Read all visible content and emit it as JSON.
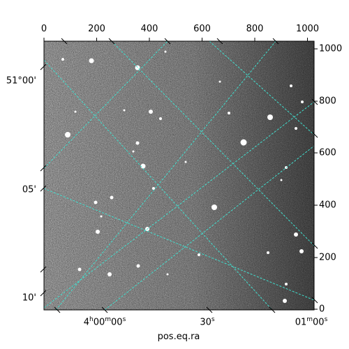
{
  "figure": {
    "x_axis_label": "pos.eq.ra",
    "top_pixel_ticks": [
      "0",
      "200",
      "400",
      "600",
      "800",
      "1000"
    ],
    "right_pixel_ticks": [
      "0",
      "200",
      "400",
      "600",
      "800",
      "1000"
    ],
    "dec_ticks": [
      "51°00'",
      "05'",
      "10'"
    ],
    "ra_ticks": [
      {
        "h": "4",
        "hu": "h",
        "m": "00",
        "mu": "m",
        "s": "00",
        "su": "s"
      },
      {
        "h": "",
        "hu": "",
        "m": "",
        "mu": "",
        "s": "30",
        "su": "s"
      },
      {
        "h": "",
        "hu": "",
        "m": "01",
        "mu": "m",
        "s": "00",
        "su": "s"
      }
    ],
    "grid_color": "#40e0d0",
    "image_colormap": "gray"
  }
}
